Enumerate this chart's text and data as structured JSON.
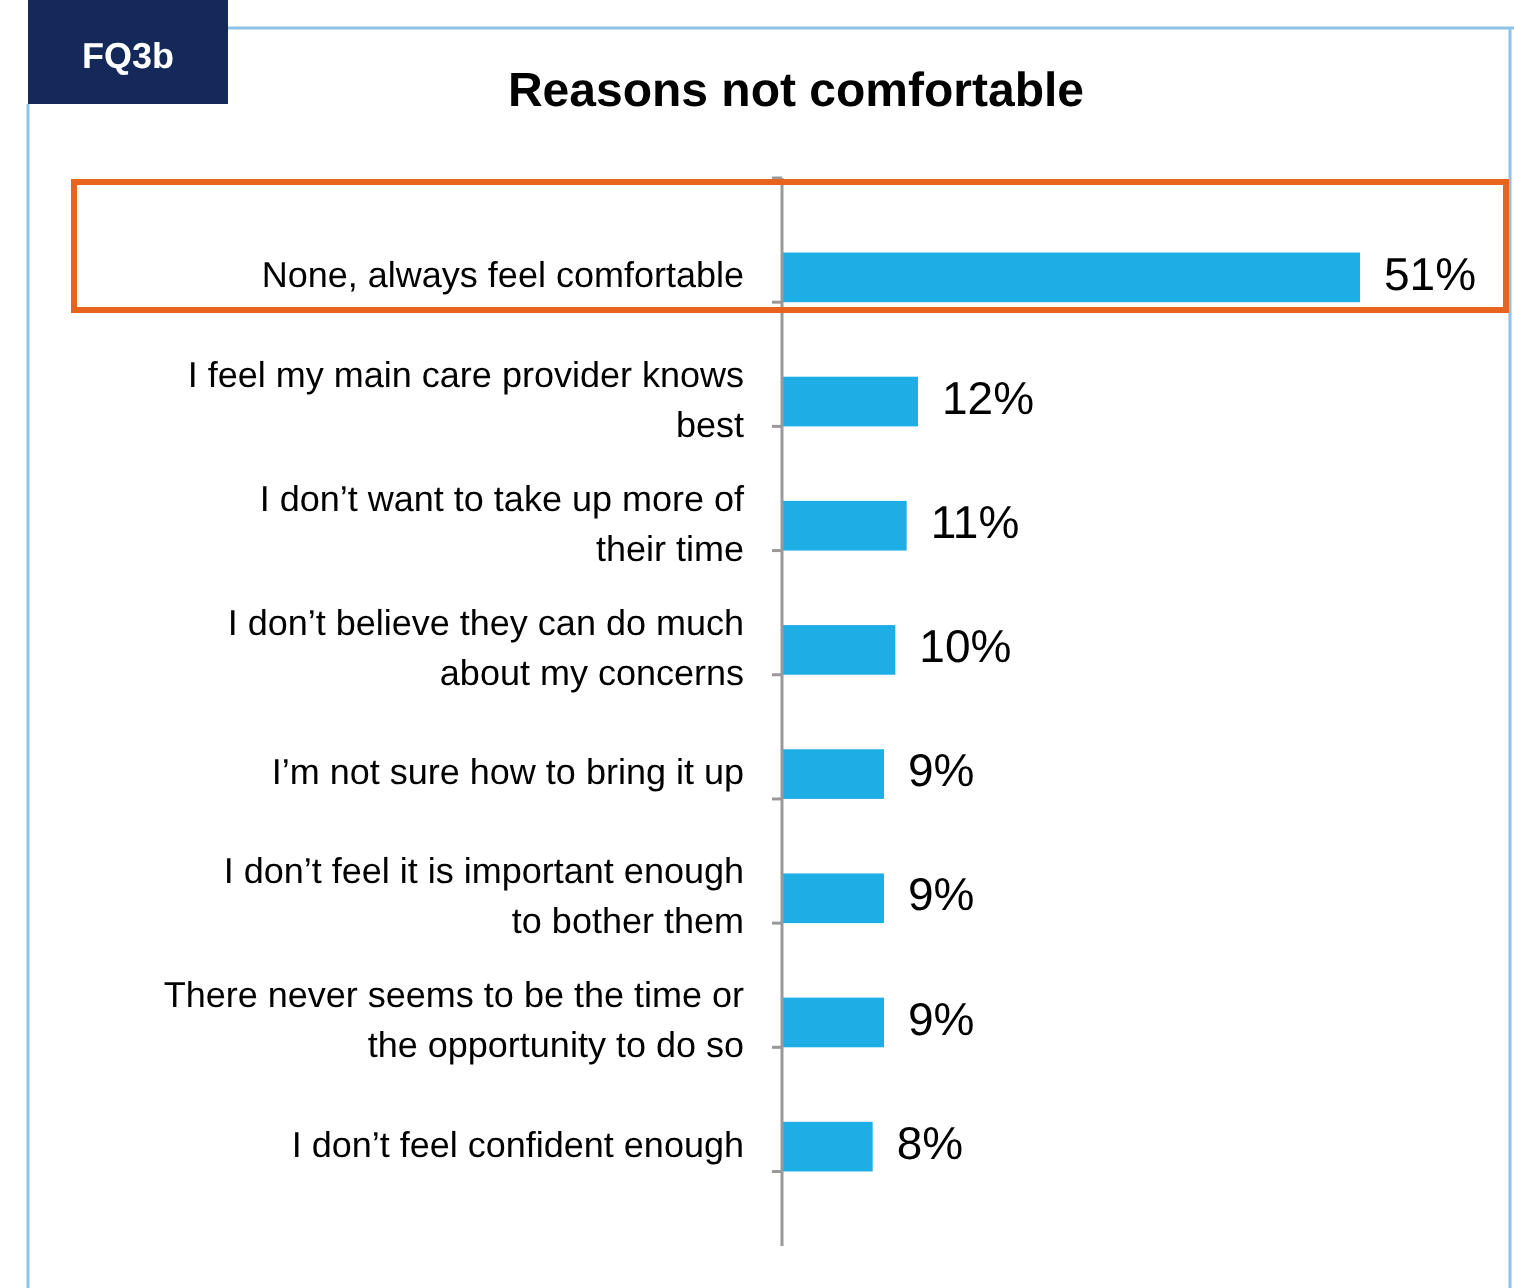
{
  "chart_data": {
    "type": "bar",
    "orientation": "horizontal",
    "title": "Reasons not comfortable",
    "annotations": [
      "FQ3b"
    ],
    "categories": [
      "None, always feel comfortable",
      "I feel my main care provider knows best",
      "I don’t want to take up more of their time",
      "I don’t believe they can do much about my concerns",
      "I’m not sure how to bring it up",
      "I don’t feel it is important enough to bother them",
      "There never seems to be the time or the opportunity to do so",
      "I don’t feel confident enough"
    ],
    "values": [
      51,
      12,
      11,
      10,
      9,
      9,
      9,
      8
    ],
    "value_labels": [
      "51%",
      "12%",
      "11%",
      "10%",
      "9%",
      "9%",
      "9%",
      "8%"
    ],
    "color": "#1eaee6"
  }
}
